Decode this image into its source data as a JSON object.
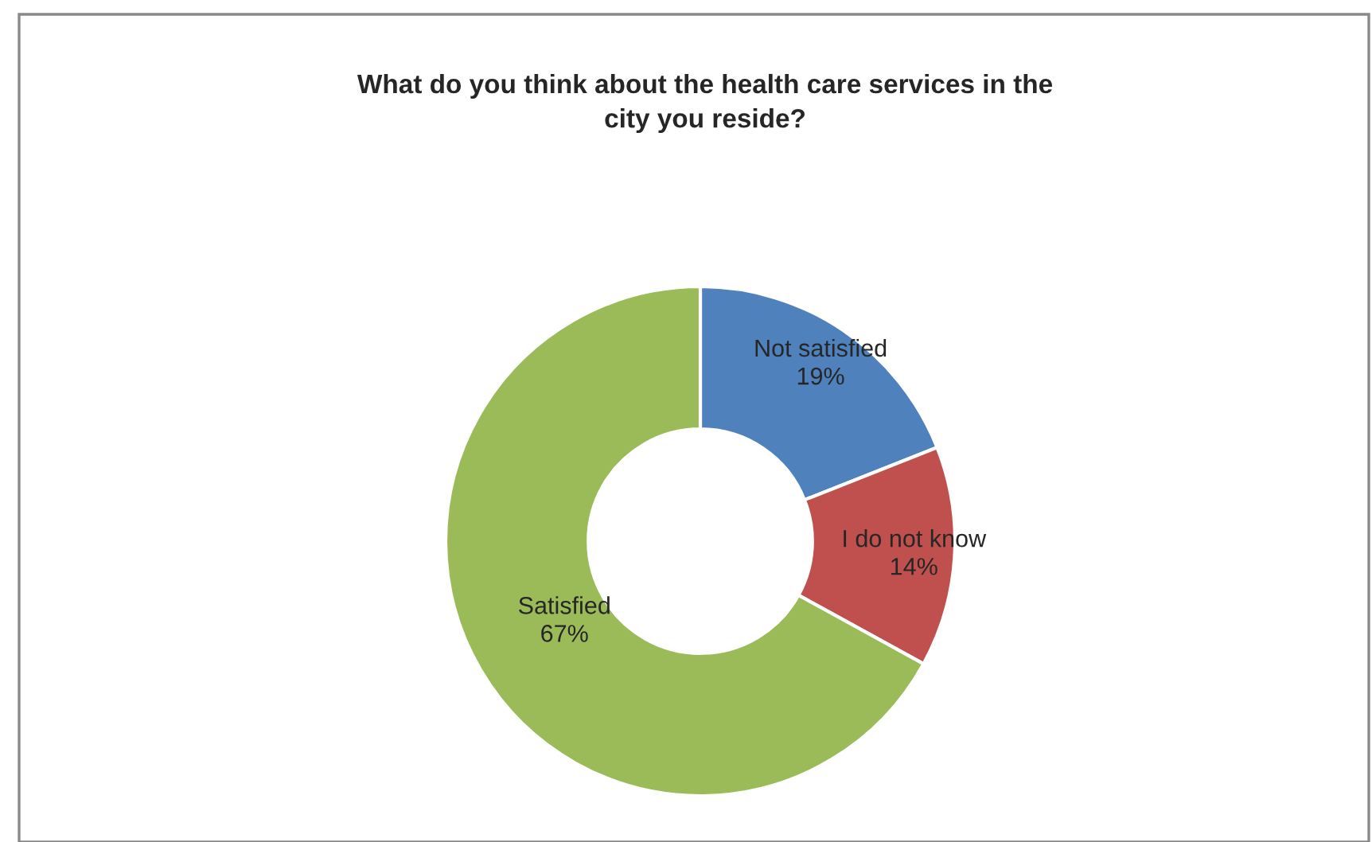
{
  "chart_data": {
    "type": "donut",
    "title": "What do you think about the health care services in the\ncity you reside?",
    "categories": [
      "Not satisfied",
      "I do not know",
      "Satisfied"
    ],
    "values": [
      19,
      14,
      67
    ],
    "colors": [
      "#4f81bd",
      "#c0504d",
      "#9bbb59"
    ],
    "value_labels": [
      "19%",
      "14%",
      "67%"
    ],
    "legend": false
  }
}
